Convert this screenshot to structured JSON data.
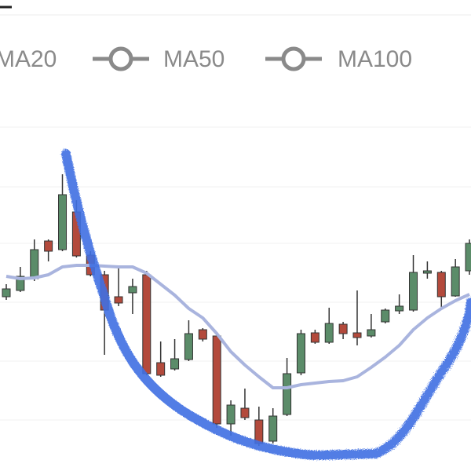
{
  "chart_data": {
    "type": "candlestick",
    "legend": [
      "MA20",
      "MA50",
      "MA100"
    ],
    "categories": [
      null,
      null,
      null,
      null,
      null,
      null,
      null,
      null,
      null,
      null,
      null,
      null,
      null,
      null,
      null,
      null,
      null,
      null,
      null,
      null,
      null,
      null,
      null,
      null,
      null,
      null,
      null,
      null,
      null,
      null,
      null,
      null,
      null,
      null
    ],
    "open": [
      222,
      230,
      245,
      293,
      282,
      330,
      275,
      250,
      222,
      227,
      250,
      138,
      130,
      142,
      180,
      172,
      60,
      80,
      65,
      38,
      72,
      125,
      176,
      164,
      187,
      176,
      172,
      190,
      204,
      205,
      252,
      253,
      223,
      255
    ],
    "high": [
      238,
      260,
      295,
      295,
      378,
      345,
      280,
      255,
      260,
      245,
      255,
      165,
      168,
      192,
      182,
      175,
      90,
      105,
      82,
      80,
      144,
      180,
      180,
      208,
      190,
      230,
      200,
      207,
      225,
      275,
      267,
      255,
      270,
      295
    ],
    "low": [
      218,
      228,
      242,
      267,
      280,
      272,
      248,
      148,
      210,
      200,
      122,
      120,
      128,
      140,
      165,
      55,
      45,
      65,
      32,
      35,
      70,
      122,
      162,
      162,
      168,
      160,
      170,
      188,
      200,
      203,
      245,
      205,
      222,
      250
    ],
    "close": [
      232,
      248,
      282,
      280,
      352,
      274,
      250,
      205,
      214,
      235,
      124,
      122,
      143,
      175,
      168,
      60,
      84,
      68,
      35,
      70,
      124,
      175,
      164,
      188,
      175,
      170,
      180,
      205,
      210,
      253,
      255,
      222,
      260,
      290
    ],
    "up_color": "#5b8c69",
    "down_color": "#b34a3c",
    "ma": [
      248,
      245,
      246,
      250,
      260,
      262,
      262,
      261,
      260,
      260,
      252,
      238,
      224,
      207,
      195,
      175,
      152,
      135,
      120,
      106,
      106,
      110,
      112,
      114,
      115,
      120,
      132,
      145,
      160,
      180,
      195,
      207,
      217,
      225
    ],
    "ma_color": "#a9b4de",
    "ylim": [
      0,
      600
    ]
  }
}
